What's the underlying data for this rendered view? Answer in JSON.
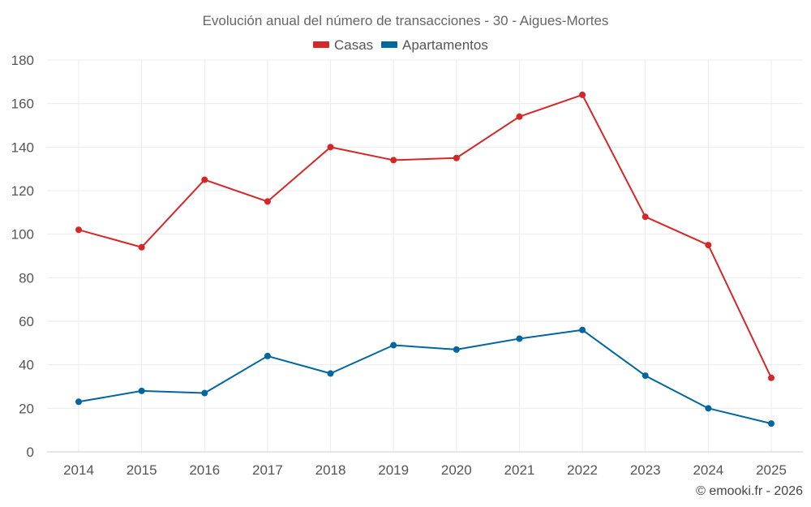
{
  "chart_data": {
    "type": "line",
    "title": "Evolución anual del número de transacciones - 30 - Aigues-Mortes",
    "categories": [
      "2014",
      "2015",
      "2016",
      "2017",
      "2018",
      "2019",
      "2020",
      "2021",
      "2022",
      "2023",
      "2024",
      "2025"
    ],
    "series": [
      {
        "name": "Casas",
        "color": "#d62728",
        "values": [
          102,
          94,
          125,
          115,
          140,
          134,
          135,
          154,
          164,
          108,
          95,
          34
        ]
      },
      {
        "name": "Apartamentos",
        "color": "#0066a1",
        "values": [
          23,
          28,
          27,
          44,
          36,
          49,
          47,
          52,
          56,
          35,
          20,
          13
        ]
      }
    ],
    "ylim": [
      0,
      180
    ],
    "yticks": [
      "0",
      "20",
      "40",
      "60",
      "80",
      "100",
      "120",
      "140",
      "160",
      "180"
    ],
    "grid": true,
    "legend_position": "top-center",
    "xlabel": "",
    "ylabel": ""
  },
  "credit": "© emooki.fr - 2026"
}
